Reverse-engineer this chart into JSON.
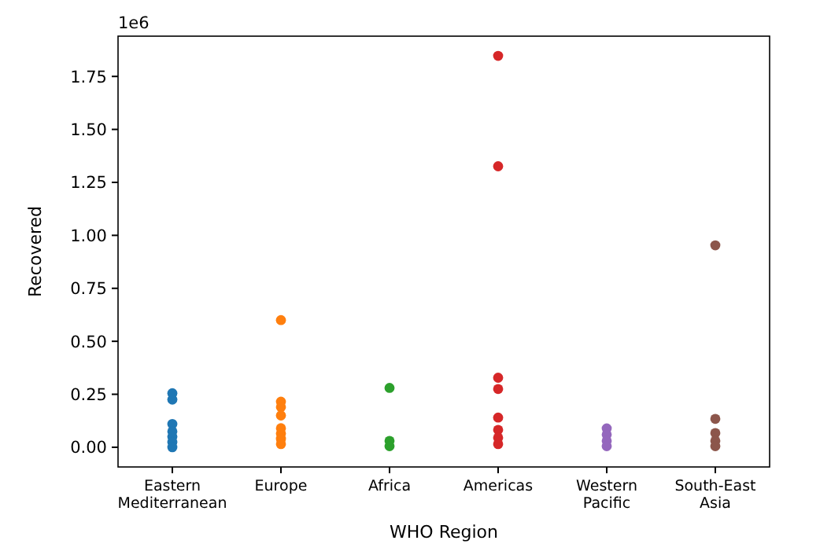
{
  "chart_data": {
    "type": "scatter",
    "xlabel": "WHO Region",
    "ylabel": "Recovered",
    "annotations": [
      "1e6"
    ],
    "marker": "circle",
    "ylim": [
      -0.093,
      1.94
    ],
    "categories": [
      "Eastern Mediterranean",
      "Europe",
      "Africa",
      "Americas",
      "Western Pacific",
      "South-East Asia"
    ],
    "yticks": [
      {
        "value": 0,
        "label": "0.00"
      },
      {
        "value": 0.25,
        "label": "0.25"
      },
      {
        "value": 0.5,
        "label": "0.50"
      },
      {
        "value": 0.75,
        "label": "0.75"
      },
      {
        "value": 1,
        "label": "1.00"
      },
      {
        "value": 1.25,
        "label": "1.25"
      },
      {
        "value": 1.5,
        "label": "1.50"
      },
      {
        "value": 1.75,
        "label": "1.75"
      }
    ],
    "series": [
      {
        "color": "#1f77b4",
        "x": [
          "Eastern Mediterranean",
          "Eastern Mediterranean",
          "Eastern Mediterranean",
          "Eastern Mediterranean",
          "Eastern Mediterranean",
          "Eastern Mediterranean",
          "Eastern Mediterranean"
        ],
        "values": [
          0.255,
          0.225,
          0.11,
          0.075,
          0.05,
          0.025,
          0.0
        ]
      },
      {
        "color": "#ff7f0e",
        "x": [
          "Europe",
          "Europe",
          "Europe",
          "Europe",
          "Europe",
          "Europe",
          "Europe",
          "Europe"
        ],
        "values": [
          0.6,
          0.215,
          0.19,
          0.15,
          0.09,
          0.065,
          0.04,
          0.015
        ]
      },
      {
        "color": "#2ca02c",
        "x": [
          "Africa",
          "Africa",
          "Africa"
        ],
        "values": [
          0.28,
          0.03,
          0.005
        ]
      },
      {
        "color": "#d62728",
        "x": [
          "Americas",
          "Americas",
          "Americas",
          "Americas",
          "Americas",
          "Americas",
          "Americas",
          "Americas"
        ],
        "values": [
          1.847,
          1.326,
          0.328,
          0.275,
          0.14,
          0.082,
          0.045,
          0.015
        ]
      },
      {
        "color": "#9467bd",
        "x": [
          "Western Pacific",
          "Western Pacific",
          "Western Pacific",
          "Western Pacific"
        ],
        "values": [
          0.089,
          0.06,
          0.03,
          0.005
        ]
      },
      {
        "color": "#8c564b",
        "x": [
          "South-East Asia",
          "South-East Asia",
          "South-East Asia",
          "South-East Asia",
          "South-East Asia"
        ],
        "values": [
          0.953,
          0.134,
          0.067,
          0.03,
          0.005
        ]
      }
    ]
  }
}
